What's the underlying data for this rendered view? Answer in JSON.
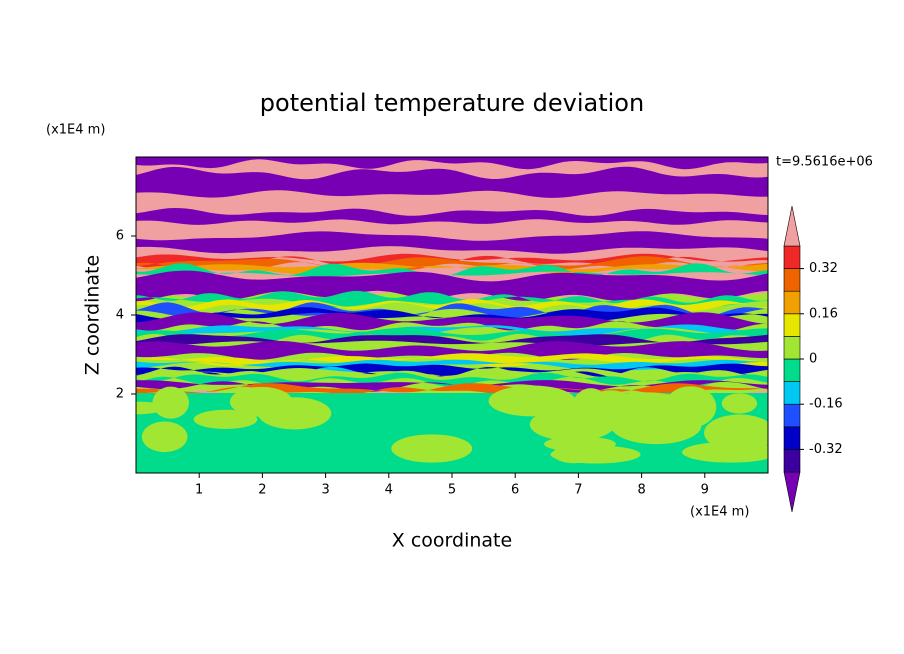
{
  "chart_data": {
    "type": "contour",
    "title": "potential temperature deviation",
    "x_label": "X coordinate",
    "y_label": "Z coordinate",
    "x_unit": "(x1E4 m)",
    "y_unit": "(x1E4 m)",
    "time_label": "t=9.5616e+06",
    "xlim": [
      0,
      10
    ],
    "xticks": [
      1,
      2,
      3,
      4,
      5,
      6,
      7,
      8,
      9
    ],
    "ylim": [
      0,
      8
    ],
    "yticks": [
      2,
      4,
      6
    ],
    "colorbar": {
      "lim": [
        -0.4,
        0.4
      ],
      "ticks": [
        -0.32,
        -0.16,
        0,
        0.16,
        0.32
      ],
      "colors": [
        "#7800b4",
        "#3c00a0",
        "#0000c8",
        "#1e50ff",
        "#00c8f0",
        "#00dc8c",
        "#a0e632",
        "#e6e600",
        "#f0a000",
        "#f06400",
        "#f02828",
        "#f0a0a0"
      ]
    }
  }
}
